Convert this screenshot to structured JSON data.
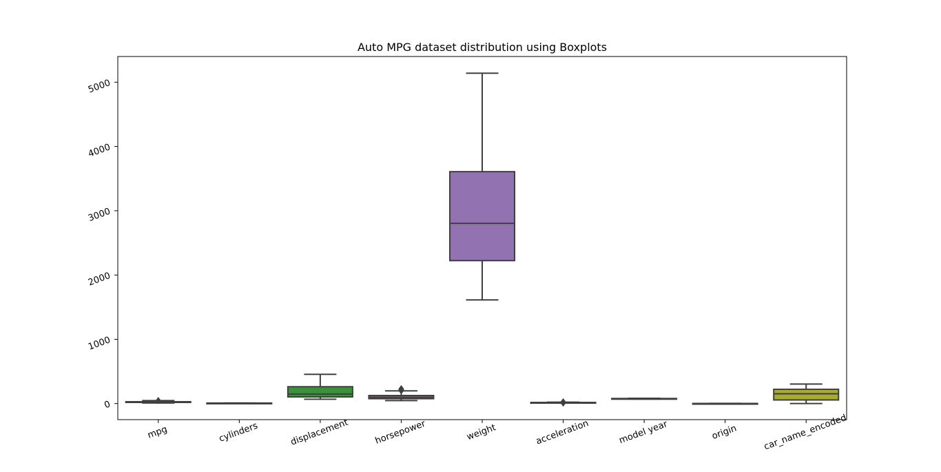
{
  "chart_data": {
    "type": "box",
    "title": "Auto MPG dataset distribution using Boxplots",
    "xlabel": "",
    "ylabel": "",
    "ylim": [
      -250,
      5400
    ],
    "yticks": [
      0,
      1000,
      2000,
      3000,
      4000,
      5000
    ],
    "grid": false,
    "categories": [
      "mpg",
      "cylinders",
      "displacement",
      "horsepower",
      "weight",
      "acceleration",
      "model year",
      "origin",
      "car_name_encoded"
    ],
    "colors": [
      "#3274a1",
      "#e1812c",
      "#3a923a",
      "#c03d3e",
      "#9372b2",
      "#845b53",
      "#d684bd",
      "#7f7f7f",
      "#a9aa35"
    ],
    "boxes": [
      {
        "name": "mpg",
        "whisker_low": 9,
        "q1": 17.5,
        "median": 23,
        "q3": 29,
        "whisker_high": 46.6,
        "outliers": [
          46.6
        ]
      },
      {
        "name": "cylinders",
        "whisker_low": 3,
        "q1": 4,
        "median": 4,
        "q3": 8,
        "whisker_high": 8,
        "outliers": []
      },
      {
        "name": "displacement",
        "whisker_low": 68,
        "q1": 104,
        "median": 148,
        "q3": 262,
        "whisker_high": 455,
        "outliers": []
      },
      {
        "name": "horsepower",
        "whisker_low": 46,
        "q1": 76,
        "median": 92,
        "q3": 125,
        "whisker_high": 198,
        "outliers": [
          200,
          210,
          215,
          220,
          225,
          230
        ]
      },
      {
        "name": "weight",
        "whisker_low": 1613,
        "q1": 2224,
        "median": 2804,
        "q3": 3608,
        "whisker_high": 5140,
        "outliers": []
      },
      {
        "name": "acceleration",
        "whisker_low": 8.5,
        "q1": 13.8,
        "median": 15.5,
        "q3": 17.2,
        "whisker_high": 22.2,
        "outliers": [
          8,
          23.5,
          24.5,
          24.8
        ]
      },
      {
        "name": "model year",
        "whisker_low": 70,
        "q1": 73,
        "median": 76,
        "q3": 79,
        "whisker_high": 82,
        "outliers": []
      },
      {
        "name": "origin",
        "whisker_low": 1,
        "q1": 1,
        "median": 1,
        "q3": 2,
        "whisker_high": 3,
        "outliers": []
      },
      {
        "name": "car_name_encoded",
        "whisker_low": 0,
        "q1": 56,
        "median": 152,
        "q3": 222,
        "whisker_high": 304,
        "outliers": []
      }
    ]
  }
}
